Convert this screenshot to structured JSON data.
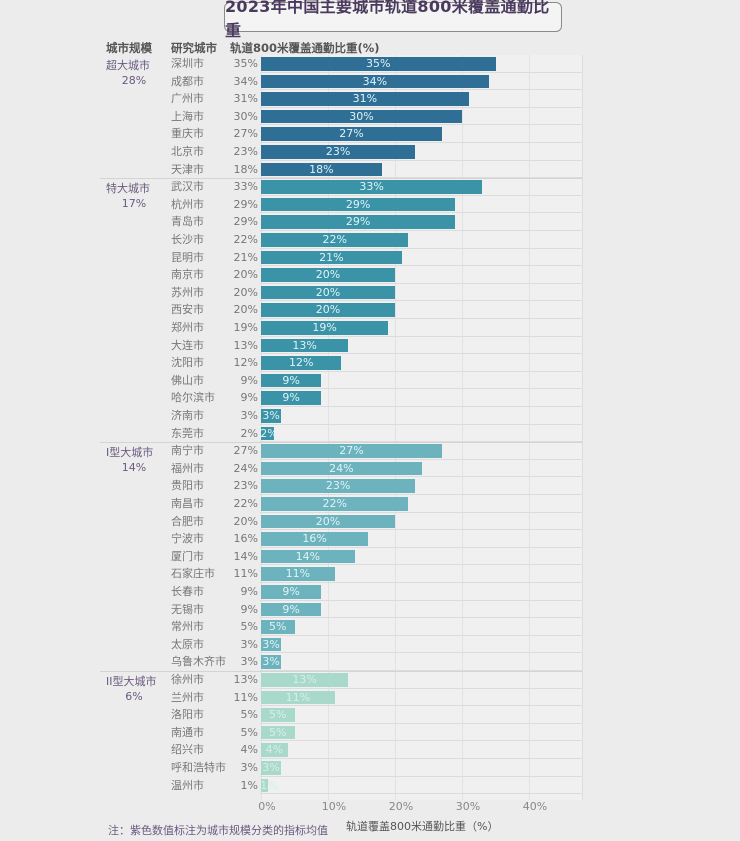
{
  "title": "2023年中国主要城市轨道800米覆盖通勤比重",
  "headers": {
    "group": "城市规模",
    "city": "研究城市",
    "metric": "轨道800米覆盖通勤比重(%)"
  },
  "footnote": "注：紫色数值标注为城市规模分类的指标均值",
  "colors": {
    "超大城市": "#2f6f96",
    "特大城市": "#3b93a8",
    "I型大城市": "#6cb3bd",
    "II型大城市": "#a9d9ca",
    "group_label": "#6a5a80"
  },
  "chart_data": {
    "type": "bar",
    "orientation": "horizontal",
    "title": "2023年中国主要城市轨道800米覆盖通勤比重",
    "xlabel": "轨道覆盖800米通勤比重（%）",
    "ylabel": "",
    "xlim": [
      0,
      48
    ],
    "xticks": [
      "0%",
      "10%",
      "20%",
      "30%",
      "40%"
    ],
    "xtick_values": [
      0,
      10,
      20,
      30,
      40
    ],
    "grid": true,
    "groups": [
      {
        "name": "超大城市",
        "avg": "28%",
        "cities": [
          "深圳市",
          "成都市",
          "广州市",
          "上海市",
          "重庆市",
          "北京市",
          "天津市"
        ],
        "values": [
          35,
          34,
          31,
          30,
          27,
          23,
          18
        ]
      },
      {
        "name": "特大城市",
        "avg": "17%",
        "cities": [
          "武汉市",
          "杭州市",
          "青岛市",
          "长沙市",
          "昆明市",
          "南京市",
          "苏州市",
          "西安市",
          "郑州市",
          "大连市",
          "沈阳市",
          "佛山市",
          "哈尔滨市",
          "济南市",
          "东莞市"
        ],
        "values": [
          33,
          29,
          29,
          22,
          21,
          20,
          20,
          20,
          19,
          13,
          12,
          9,
          9,
          3,
          2
        ]
      },
      {
        "name": "I型大城市",
        "avg": "14%",
        "cities": [
          "南宁市",
          "福州市",
          "贵阳市",
          "南昌市",
          "合肥市",
          "宁波市",
          "厦门市",
          "石家庄市",
          "长春市",
          "无锡市",
          "常州市",
          "太原市",
          "乌鲁木齐市"
        ],
        "values": [
          27,
          24,
          23,
          22,
          20,
          16,
          14,
          11,
          9,
          9,
          5,
          3,
          3
        ]
      },
      {
        "name": "II型大城市",
        "avg": "6%",
        "cities": [
          "徐州市",
          "兰州市",
          "洛阳市",
          "南通市",
          "绍兴市",
          "呼和浩特市",
          "温州市"
        ],
        "values": [
          13,
          11,
          5,
          5,
          4,
          3,
          1
        ]
      }
    ]
  }
}
